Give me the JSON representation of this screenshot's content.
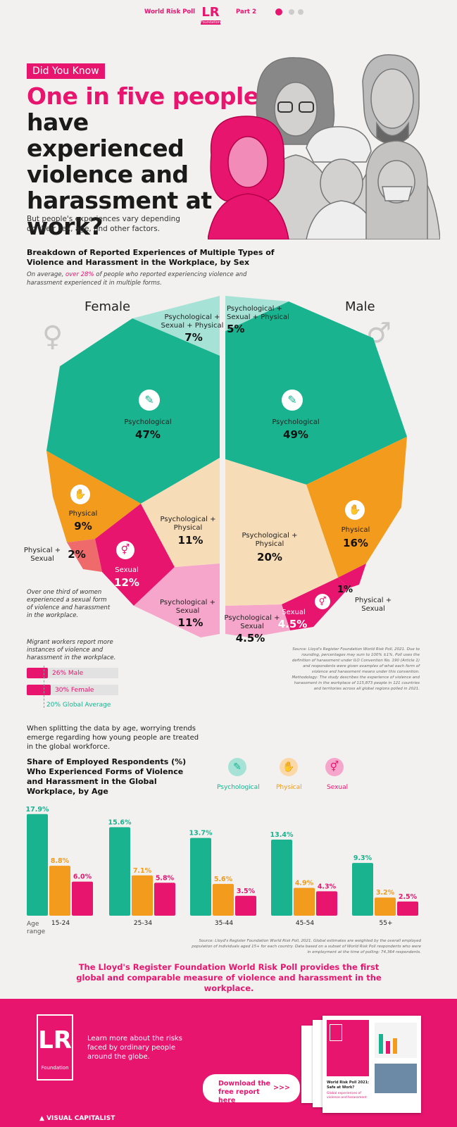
{
  "header": {
    "title": "World Risk Poll",
    "logo_text": "LR",
    "logo_sub": "Foundation",
    "part": "Part 2"
  },
  "hero": {
    "badge": "Did You Know",
    "headline_pink": "One in five people",
    "headline_rest": "have experienced violence and harassment at work?",
    "subtitle": "But people's experiences vary depending on their sex, age, and other factors."
  },
  "pie_section": {
    "title": "Breakdown of Reported Experiences of Multiple Types of Violence and Harassment in the Workplace, by Sex",
    "note_before": "On average, ",
    "note_highlight": "over 28%",
    "note_after": " of people who reported experiencing violence and harassment experienced it in multiple forms.",
    "female_title": "Female",
    "male_title": "Male",
    "female_callout": "Over one third of women experienced a sexual form of violence and harassment in the workplace."
  },
  "migrant": {
    "title": "Migrant workers report more instances of violence and harassment in the workplace.",
    "rows": [
      {
        "label": "26% Male",
        "value": 26
      },
      {
        "label": "30% Female",
        "value": 30
      }
    ],
    "global_label": "20% Global Average",
    "global_value": 20
  },
  "source_pie": "Source: Lloyd's Register Foundation World Risk Poll, 2021. Due to rounding, percentages may sum to 100% ±1%. Poll uses the definition of harassment under ILO Convention No. 190 (Article 1) and respondents were given examples of what each form of violence and harassment means under this convention. Methodology: The study describes the experience of violence and harassment in the workplace of 115,873 people in 121 countries and territories across all global regions polled in 2021.",
  "age_section": {
    "intro": "When splitting the data by age, worrying trends emerge regarding how young people are treated in the global workforce.",
    "title": "Share of Employed Respondents (%) Who Experienced Forms of Violence and Harassment in the Global Workplace, by Age",
    "age_range_label": "Age range",
    "source": "Source: Lloyd's Register Foundation World Risk Poll, 2021. Global estimates are weighted by the overall employed population of individuals aged 15+ for each country. Data based on a subset of World Risk Poll respondents who were in employment at the time of polling: 74,364 respondents."
  },
  "conclusion": "The Lloyd's Register Foundation World Risk Poll provides the first global and comparable measure of violence and harassment in the workplace.",
  "footer": {
    "logo_text": "LR",
    "logo_sub": "Foundation",
    "learn_text": "Learn more about the risks faced by ordinary people around the globe.",
    "download_label": "Download the free report here",
    "arrows": ">>>",
    "brand": "VISUAL CAPITALIST",
    "report_title": "World Risk Poll 2021: Safe at Work?",
    "report_sub": "Global experiences of violence and harassment"
  },
  "colors": {
    "psychological": "#19b38f",
    "physical": "#f39b1c",
    "sexual": "#e8156f",
    "psych_phys": "#f7ddb7",
    "psych_sex": "#f7a6cb",
    "phys_sex": "#ef6b6b",
    "all_three": "#a6e3d6",
    "accent": "#e8156f"
  },
  "icons": [
    "speech-bubble-icon",
    "handshake-icon",
    "gender-symbol-icon",
    "female-symbol-icon",
    "male-symbol-icon"
  ],
  "chart_data": [
    {
      "type": "pie",
      "title": "Female",
      "categories": [
        "Psychological + Sexual + Physical",
        "Psychological",
        "Physical",
        "Physical + Sexual",
        "Sexual",
        "Psychological + Sexual",
        "Psychological + Physical"
      ],
      "values": [
        7,
        47,
        9,
        2,
        12,
        11,
        11
      ],
      "labels": [
        "7%",
        "47%",
        "9%",
        "2%",
        "12%",
        "11%",
        "11%"
      ]
    },
    {
      "type": "pie",
      "title": "Male",
      "categories": [
        "Psychological + Sexual + Physical",
        "Psychological",
        "Physical",
        "Physical + Sexual",
        "Sexual",
        "Psychological + Sexual",
        "Psychological + Physical"
      ],
      "values": [
        5,
        49,
        16,
        1,
        4.5,
        4.5,
        20
      ],
      "labels": [
        "5%",
        "49%",
        "16%",
        "1%",
        "4.5%",
        "4.5%",
        "20%"
      ]
    },
    {
      "type": "bar",
      "title": "Share of Employed Respondents (%) Who Experienced Forms of Violence and Harassment in the Global Workplace, by Age",
      "categories": [
        "15-24",
        "25-34",
        "35-44",
        "45-54",
        "55+"
      ],
      "series": [
        {
          "name": "Psychological",
          "values": [
            17.9,
            15.6,
            13.7,
            13.4,
            9.3
          ],
          "labels": [
            "17.9%",
            "15.6%",
            "13.7%",
            "13.4%",
            "9.3%"
          ]
        },
        {
          "name": "Physical",
          "values": [
            8.8,
            7.1,
            5.6,
            4.9,
            3.2
          ],
          "labels": [
            "8.8%",
            "7.1%",
            "5.6%",
            "4.9%",
            "3.2%"
          ]
        },
        {
          "name": "Sexual",
          "values": [
            6.0,
            5.8,
            3.5,
            4.3,
            2.5
          ],
          "labels": [
            "6.0%",
            "5.8%",
            "3.5%",
            "4.3%",
            "2.5%"
          ]
        }
      ],
      "ylim": [
        0,
        18
      ]
    }
  ]
}
